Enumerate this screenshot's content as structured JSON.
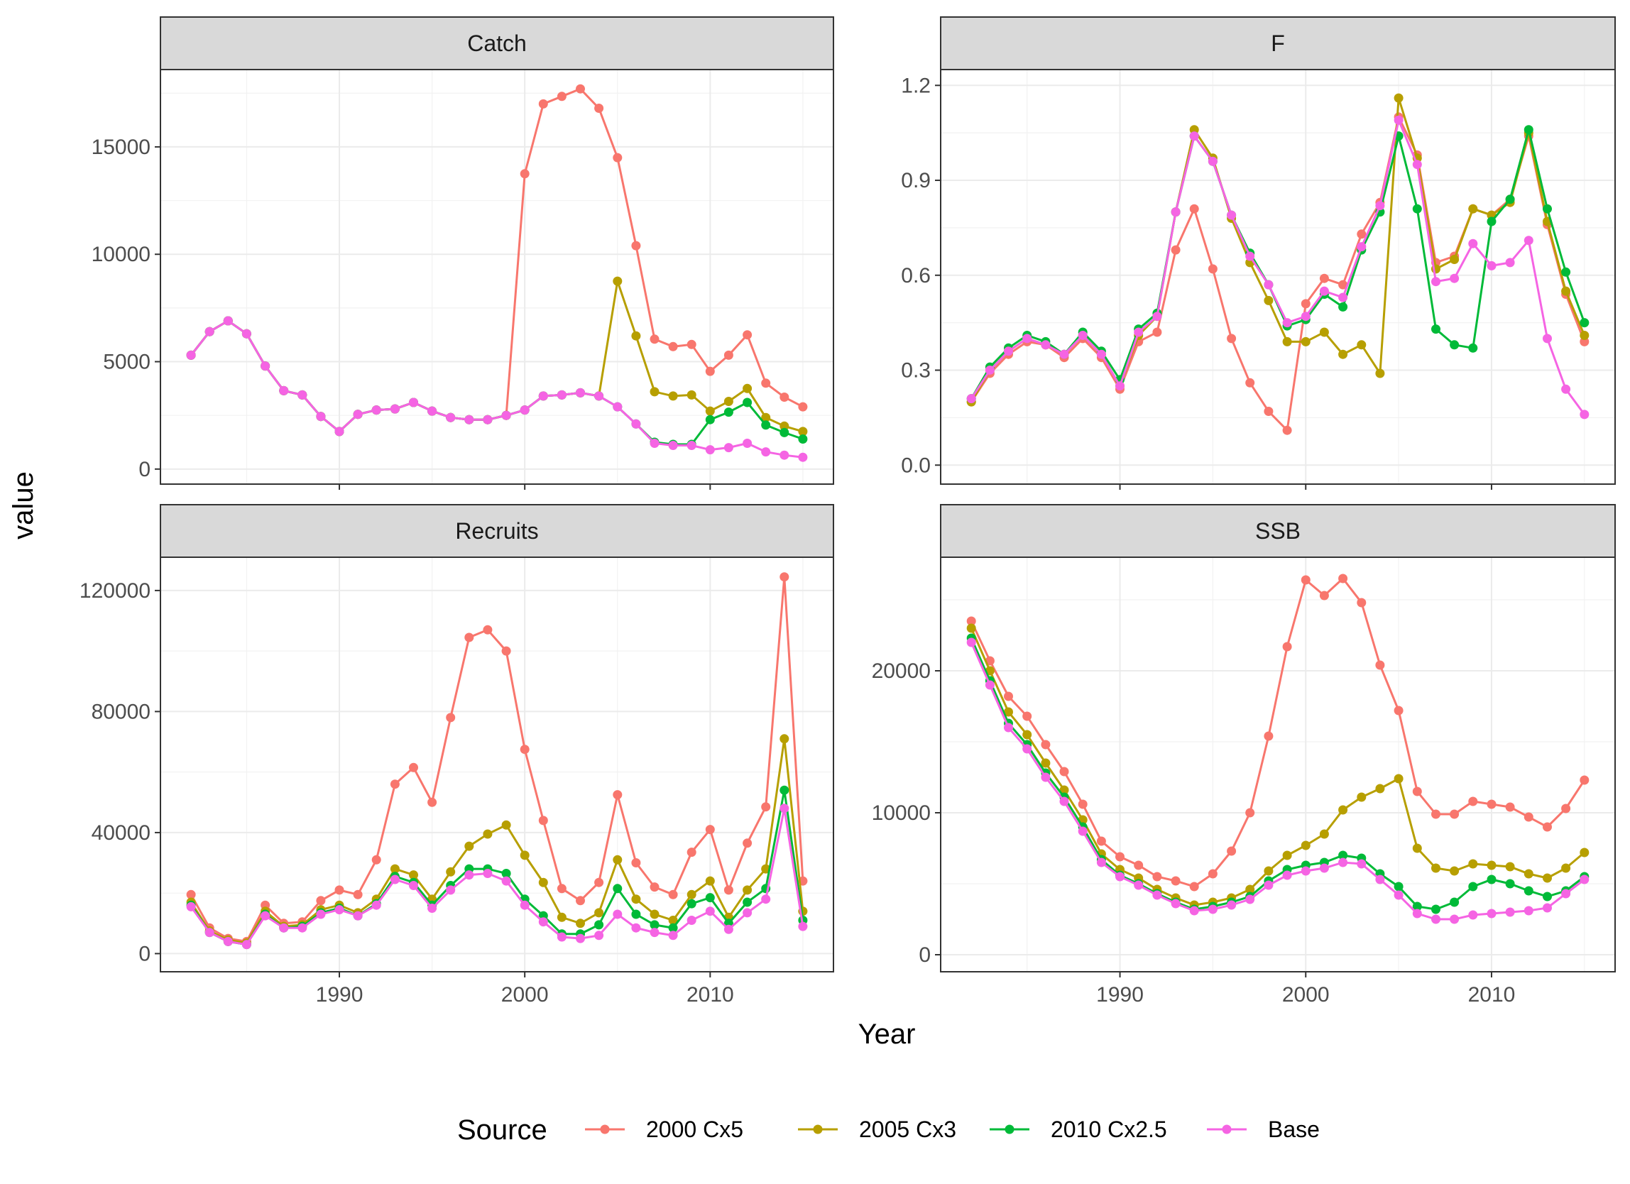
{
  "figure": {
    "xlabel": "Year",
    "ylabel": "value",
    "legend_title": "Source",
    "legend_position": "bottom"
  },
  "series_meta": [
    {
      "name": "2000 Cx5",
      "color": "#F8766D"
    },
    {
      "name": "2005 Cx3",
      "color": "#B79F00"
    },
    {
      "name": "2010 Cx2.5",
      "color": "#00BA38"
    },
    {
      "name": "Base",
      "color": "#F564E3"
    }
  ],
  "chart_data": [
    {
      "type": "line",
      "title": "Catch",
      "x_start": 1982,
      "xlim": [
        1980.35,
        2016.65
      ],
      "xticks": [
        "1990",
        "2000",
        "2010"
      ],
      "ylim": [
        -700,
        18600
      ],
      "yticks": [
        0,
        5000,
        10000,
        15000
      ],
      "ytick_labels": [
        "0",
        "5000",
        "10000",
        "15000"
      ],
      "series": [
        {
          "name": "2000 Cx5",
          "values": [
            5300,
            6400,
            6900,
            6300,
            4800,
            3650,
            3450,
            2450,
            1750,
            2550,
            2750,
            2800,
            3100,
            2700,
            2400,
            2300,
            2300,
            2500,
            13750,
            17000,
            17350,
            17700,
            16800,
            14500,
            10400,
            6050,
            5700,
            5800,
            4550,
            5300,
            6250,
            4000,
            3350,
            2900
          ]
        },
        {
          "name": "2005 Cx3",
          "values": [
            5300,
            6400,
            6900,
            6300,
            4800,
            3650,
            3450,
            2450,
            1750,
            2550,
            2750,
            2800,
            3100,
            2700,
            2400,
            2300,
            2300,
            2500,
            2750,
            3400,
            3450,
            3550,
            3400,
            8750,
            6200,
            3600,
            3400,
            3450,
            2700,
            3150,
            3750,
            2400,
            2000,
            1750
          ]
        },
        {
          "name": "2010 Cx2.5",
          "values": [
            5300,
            6400,
            6900,
            6300,
            4800,
            3650,
            3450,
            2450,
            1750,
            2550,
            2750,
            2800,
            3100,
            2700,
            2400,
            2300,
            2300,
            2500,
            2750,
            3400,
            3450,
            3550,
            3400,
            2900,
            2100,
            1250,
            1150,
            1150,
            2300,
            2650,
            3100,
            2050,
            1700,
            1400
          ]
        },
        {
          "name": "Base",
          "values": [
            5300,
            6400,
            6900,
            6300,
            4800,
            3650,
            3450,
            2450,
            1750,
            2550,
            2750,
            2800,
            3100,
            2700,
            2400,
            2300,
            2300,
            2500,
            2750,
            3400,
            3450,
            3550,
            3400,
            2900,
            2100,
            1200,
            1100,
            1100,
            900,
            1000,
            1200,
            800,
            650,
            550
          ]
        }
      ]
    },
    {
      "type": "line",
      "title": "F",
      "x_start": 1982,
      "xlim": [
        1980.35,
        2016.65
      ],
      "xticks": [
        "1990",
        "2000",
        "2010"
      ],
      "ylim": [
        -0.06,
        1.25
      ],
      "yticks": [
        0,
        0.3,
        0.6,
        0.9,
        1.2
      ],
      "ytick_labels": [
        "0.0",
        "0.3",
        "0.6",
        "0.9",
        "1.2"
      ],
      "series": [
        {
          "name": "2000 Cx5",
          "values": [
            0.2,
            0.29,
            0.35,
            0.39,
            0.38,
            0.34,
            0.4,
            0.34,
            0.24,
            0.39,
            0.42,
            0.68,
            0.81,
            0.62,
            0.4,
            0.26,
            0.17,
            0.11,
            0.51,
            0.59,
            0.57,
            0.73,
            0.83,
            1.1,
            0.98,
            0.64,
            0.66,
            0.81,
            0.79,
            0.84,
            1.04,
            0.76,
            0.54,
            0.39
          ]
        },
        {
          "name": "2005 Cx3",
          "values": [
            0.2,
            0.3,
            0.36,
            0.4,
            0.38,
            0.35,
            0.41,
            0.35,
            0.25,
            0.41,
            0.47,
            0.8,
            1.06,
            0.97,
            0.78,
            0.64,
            0.52,
            0.39,
            0.39,
            0.42,
            0.35,
            0.38,
            0.29,
            1.16,
            0.97,
            0.62,
            0.65,
            0.81,
            0.79,
            0.83,
            1.05,
            0.77,
            0.55,
            0.41
          ]
        },
        {
          "name": "2010 Cx2.5",
          "values": [
            0.21,
            0.31,
            0.37,
            0.41,
            0.39,
            0.35,
            0.42,
            0.36,
            0.27,
            0.43,
            0.48,
            0.8,
            1.04,
            0.96,
            0.79,
            0.67,
            0.57,
            0.44,
            0.46,
            0.54,
            0.5,
            0.68,
            0.8,
            1.04,
            0.81,
            0.43,
            0.38,
            0.37,
            0.77,
            0.84,
            1.06,
            0.81,
            0.61,
            0.45
          ]
        },
        {
          "name": "Base",
          "values": [
            0.21,
            0.3,
            0.36,
            0.4,
            0.38,
            0.35,
            0.41,
            0.35,
            0.25,
            0.42,
            0.47,
            0.8,
            1.04,
            0.96,
            0.79,
            0.66,
            0.57,
            0.45,
            0.47,
            0.55,
            0.53,
            0.69,
            0.82,
            1.09,
            0.95,
            0.58,
            0.59,
            0.7,
            0.63,
            0.64,
            0.71,
            0.4,
            0.24,
            0.16
          ]
        }
      ]
    },
    {
      "type": "line",
      "title": "Recruits",
      "x_start": 1982,
      "xlim": [
        1980.35,
        2016.65
      ],
      "xticks": [
        "1990",
        "2000",
        "2010"
      ],
      "ylim": [
        -6000,
        131000
      ],
      "yticks": [
        0,
        40000,
        80000,
        120000
      ],
      "ytick_labels": [
        "0",
        "40000",
        "80000",
        "120000"
      ],
      "series": [
        {
          "name": "2000 Cx5",
          "values": [
            19500,
            8500,
            5000,
            4000,
            16000,
            10000,
            10500,
            17500,
            21000,
            19500,
            31000,
            56000,
            61500,
            50000,
            78000,
            104500,
            107000,
            100000,
            67500,
            44000,
            21500,
            17500,
            23500,
            52500,
            30000,
            22000,
            19500,
            33500,
            41000,
            21000,
            36500,
            48500,
            124500,
            24000
          ]
        },
        {
          "name": "2005 Cx3",
          "values": [
            17000,
            7500,
            4500,
            3500,
            14000,
            9000,
            9500,
            14500,
            16000,
            13500,
            18000,
            28000,
            26000,
            18000,
            27000,
            35500,
            39500,
            42500,
            32500,
            23500,
            12000,
            10000,
            13500,
            31000,
            18000,
            13000,
            11000,
            19500,
            24000,
            12000,
            21000,
            28000,
            71000,
            14000
          ]
        },
        {
          "name": "2010 Cx2.5",
          "values": [
            16000,
            7000,
            4000,
            3000,
            13000,
            8500,
            9000,
            13500,
            15000,
            12500,
            16500,
            25500,
            23500,
            16000,
            22500,
            28000,
            28000,
            26500,
            18000,
            12500,
            6500,
            6500,
            9500,
            21500,
            13000,
            9500,
            8500,
            16500,
            18500,
            10000,
            17000,
            21500,
            54000,
            11000
          ]
        },
        {
          "name": "Base",
          "values": [
            15500,
            7000,
            4000,
            3000,
            12500,
            8500,
            8500,
            13000,
            14500,
            12500,
            16000,
            24500,
            22500,
            15000,
            21000,
            26000,
            26500,
            24000,
            16000,
            10500,
            5500,
            5000,
            6000,
            13000,
            8500,
            7000,
            6000,
            11000,
            14000,
            8000,
            13500,
            18000,
            48000,
            9000
          ]
        }
      ]
    },
    {
      "type": "line",
      "title": "SSB",
      "x_start": 1982,
      "xlim": [
        1980.35,
        2016.65
      ],
      "xticks": [
        "1990",
        "2000",
        "2010"
      ],
      "ylim": [
        -1200,
        28000
      ],
      "yticks": [
        0,
        10000,
        20000
      ],
      "ytick_labels": [
        "0",
        "10000",
        "20000"
      ],
      "series": [
        {
          "name": "2000 Cx5",
          "values": [
            23500,
            20700,
            18200,
            16800,
            14800,
            12900,
            10600,
            8000,
            6900,
            6300,
            5500,
            5200,
            4800,
            5700,
            7300,
            10000,
            15400,
            21700,
            26400,
            25300,
            26500,
            24800,
            20400,
            17200,
            11500,
            9900,
            9900,
            10800,
            10600,
            10400,
            9700,
            9000,
            10300,
            12300
          ]
        },
        {
          "name": "2005 Cx3",
          "values": [
            23000,
            20000,
            17100,
            15500,
            13500,
            11600,
            9500,
            7100,
            6000,
            5400,
            4600,
            4000,
            3500,
            3700,
            4000,
            4600,
            5900,
            7000,
            7700,
            8500,
            10200,
            11100,
            11700,
            12400,
            7500,
            6100,
            5900,
            6400,
            6300,
            6200,
            5700,
            5400,
            6100,
            7200
          ]
        },
        {
          "name": "2010 Cx2.5",
          "values": [
            22300,
            19300,
            16300,
            14800,
            12800,
            11100,
            9000,
            6700,
            5600,
            5000,
            4300,
            3700,
            3200,
            3400,
            3700,
            4100,
            5200,
            6000,
            6300,
            6500,
            7000,
            6800,
            5700,
            4800,
            3400,
            3200,
            3700,
            4800,
            5300,
            5000,
            4500,
            4100,
            4500,
            5500
          ]
        },
        {
          "name": "Base",
          "values": [
            22000,
            19000,
            16000,
            14500,
            12500,
            10800,
            8700,
            6500,
            5500,
            4900,
            4200,
            3600,
            3100,
            3200,
            3500,
            3900,
            4900,
            5600,
            5900,
            6100,
            6500,
            6400,
            5300,
            4200,
            2900,
            2500,
            2500,
            2800,
            2900,
            3000,
            3100,
            3300,
            4300,
            5300
          ]
        }
      ]
    }
  ]
}
